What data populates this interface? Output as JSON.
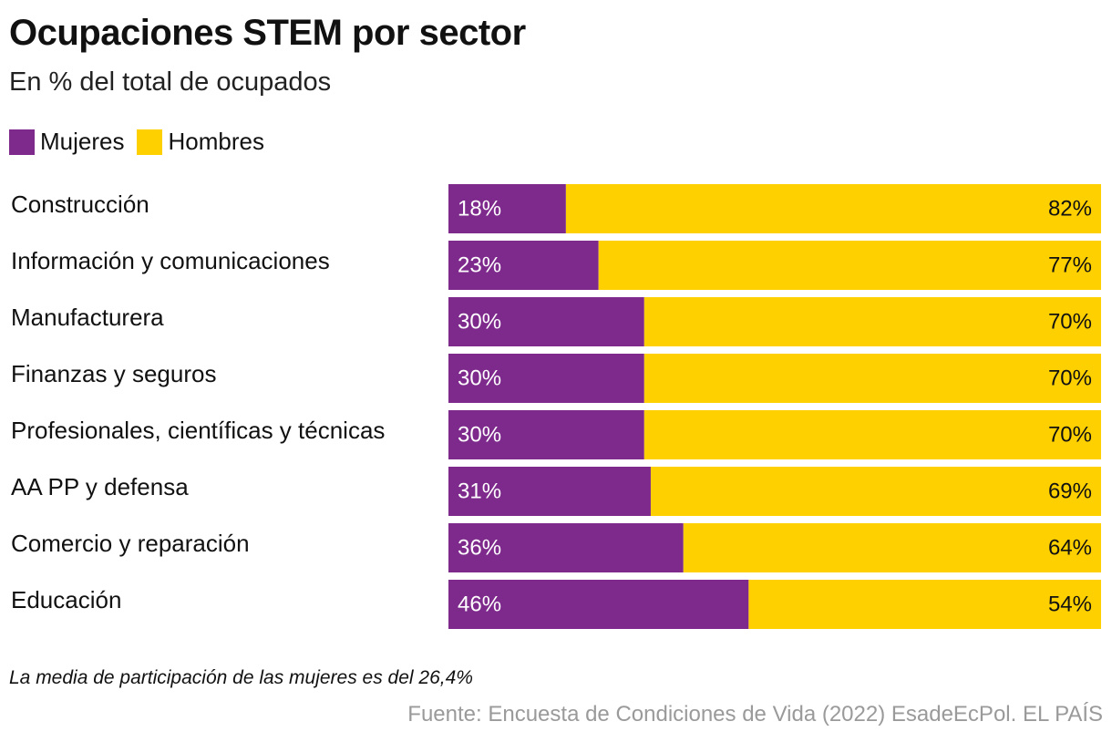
{
  "chart_data": {
    "type": "bar",
    "orientation": "horizontal",
    "stacked": true,
    "title": "Ocupaciones STEM por sector",
    "subtitle": "En % del total de ocupados",
    "categories": [
      "Construcción",
      "Información y comunicaciones",
      "Manufacturera",
      "Finanzas y seguros",
      "Profesionales, científicas y técnicas",
      "AA PP y defensa",
      "Comercio y reparación",
      "Educación"
    ],
    "series": [
      {
        "name": "Mujeres",
        "color": "#7e2a8c",
        "values": [
          18,
          23,
          30,
          30,
          30,
          31,
          36,
          46
        ],
        "labels": [
          "18%",
          "23%",
          "30%",
          "30%",
          "30%",
          "31%",
          "36%",
          "46%"
        ]
      },
      {
        "name": "Hombres",
        "color": "#ffd000",
        "values": [
          82,
          77,
          70,
          70,
          70,
          69,
          64,
          54
        ],
        "labels": [
          "82%",
          "77%",
          "70%",
          "70%",
          "70%",
          "69%",
          "64%",
          "54%"
        ]
      }
    ],
    "xlim": [
      0,
      100
    ],
    "grid": false,
    "legend": "top-left",
    "note": "La media de participación de las mujeres es del 26,4%",
    "source": "Fuente: Encuesta de Condiciones de Vida (2022) EsadeEcPol. EL PAÍS"
  }
}
